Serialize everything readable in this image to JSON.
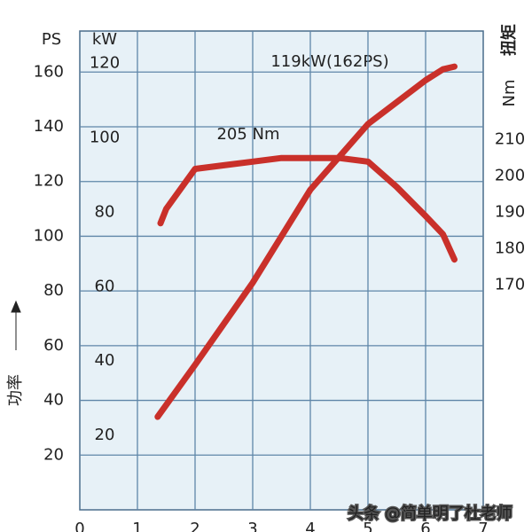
{
  "chart_data": {
    "type": "line",
    "xlim": [
      0,
      7
    ],
    "xticks": [
      0,
      1,
      2,
      3,
      4,
      5,
      6,
      7
    ],
    "ylim": [
      0,
      175
    ],
    "yticks": [
      20,
      40,
      60,
      80,
      100,
      120,
      140,
      160
    ],
    "y_unit": "PS",
    "y3lim": [
      0,
      128.7
    ],
    "y3ticks": [
      20,
      40,
      60,
      80,
      100,
      120
    ],
    "y3_unit": "kW",
    "y2lim": [
      108,
      240
    ],
    "y2ticks": [
      170,
      180,
      190,
      200,
      210
    ],
    "y2_unit": "Nm",
    "y2_label": "扭矩",
    "y_label": "功率",
    "grid": true,
    "series": [
      {
        "name": "功率",
        "color": "#c9302a",
        "axis": "y",
        "x": [
          1.35,
          2,
          3,
          4,
          5,
          6,
          6.3,
          6.5
        ],
        "values": [
          34,
          53,
          83,
          117,
          141,
          157,
          161,
          162
        ]
      },
      {
        "name": "扭矩",
        "color": "#c9302a",
        "axis": "y2",
        "x": [
          1.4,
          1.5,
          2,
          3,
          3.5,
          4,
          4.5,
          5,
          5.5,
          6,
          6.3,
          6.5
        ],
        "values": [
          187,
          191,
          202,
          204,
          205,
          205,
          205,
          204,
          197,
          189,
          184,
          177
        ]
      }
    ],
    "annotations": [
      "119kW(162PS)",
      "205 Nm"
    ],
    "watermark": "头条 @简单明了杜老师"
  }
}
